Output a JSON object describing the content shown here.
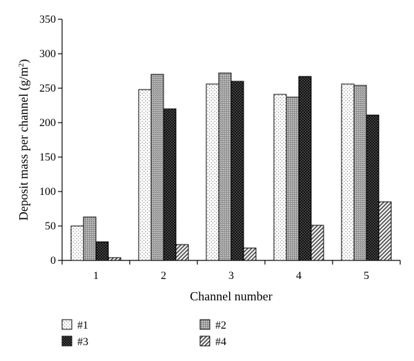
{
  "chart_data": {
    "type": "bar",
    "categories": [
      "1",
      "2",
      "3",
      "4",
      "5"
    ],
    "series": [
      {
        "name": "#1",
        "values": [
          50,
          248,
          256,
          241,
          256
        ]
      },
      {
        "name": "#2",
        "values": [
          63,
          270,
          272,
          237,
          254
        ]
      },
      {
        "name": "#3",
        "values": [
          27,
          220,
          260,
          267,
          211
        ]
      },
      {
        "name": "#4",
        "values": [
          4,
          23,
          18,
          51,
          85
        ]
      }
    ],
    "title": "",
    "xlabel": "Channel number",
    "ylabel_main": "Deposit mass per channel (g/m",
    "ylabel_sup": "2",
    "ylabel_tail": ")",
    "ylim": [
      0,
      350
    ],
    "yticks": [
      "0",
      "50",
      "100",
      "150",
      "200",
      "250",
      "300",
      "350"
    ],
    "grid": false,
    "legend_position": "bottom",
    "patterns": [
      "dotted-light",
      "gray-stipple",
      "black-dotted",
      "diagonal-hatch"
    ]
  }
}
